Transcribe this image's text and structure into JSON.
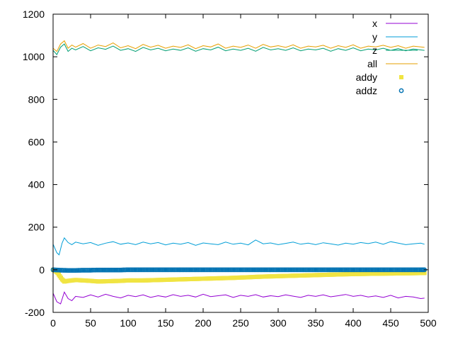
{
  "chart_data": {
    "type": "line",
    "title": "",
    "xlabel": "",
    "ylabel": "",
    "xlim": [
      0,
      500
    ],
    "ylim": [
      -200,
      1200
    ],
    "xticks": [
      0,
      50,
      100,
      150,
      200,
      250,
      300,
      350,
      400,
      450,
      500
    ],
    "yticks": [
      -200,
      0,
      200,
      400,
      600,
      800,
      1000,
      1200
    ],
    "xtick_labels": [
      "0",
      "50",
      "100",
      "150",
      "200",
      "250",
      "300",
      "350",
      "400",
      "450",
      "500"
    ],
    "ytick_labels": [
      "-200",
      "0",
      "200",
      "400",
      "600",
      "800",
      "1000",
      "1200"
    ],
    "grid": false,
    "legend_position": "top-right",
    "series": [
      {
        "name": "x",
        "style": "line",
        "color": "#9400d3",
        "x": [
          0,
          5,
          10,
          15,
          20,
          25,
          30,
          40,
          50,
          60,
          70,
          80,
          90,
          100,
          110,
          120,
          130,
          140,
          150,
          160,
          170,
          180,
          190,
          200,
          210,
          220,
          230,
          240,
          250,
          260,
          270,
          280,
          290,
          300,
          310,
          320,
          330,
          340,
          350,
          360,
          370,
          380,
          390,
          400,
          410,
          420,
          430,
          440,
          450,
          460,
          470,
          480,
          490,
          495
        ],
        "y": [
          -110,
          -150,
          -160,
          -105,
          -135,
          -145,
          -125,
          -130,
          -118,
          -128,
          -115,
          -125,
          -132,
          -120,
          -126,
          -118,
          -130,
          -122,
          -128,
          -117,
          -125,
          -120,
          -128,
          -115,
          -126,
          -122,
          -118,
          -130,
          -120,
          -125,
          -117,
          -128,
          -122,
          -126,
          -118,
          -124,
          -130,
          -120,
          -125,
          -118,
          -127,
          -122,
          -116,
          -125,
          -120,
          -128,
          -123,
          -130,
          -120,
          -132,
          -125,
          -128,
          -135,
          -133
        ]
      },
      {
        "name": "y",
        "style": "line",
        "color": "#009ed7",
        "x": [
          0,
          5,
          8,
          12,
          15,
          20,
          25,
          30,
          40,
          50,
          60,
          70,
          80,
          90,
          100,
          110,
          120,
          130,
          140,
          150,
          160,
          170,
          180,
          190,
          200,
          210,
          220,
          230,
          240,
          250,
          260,
          270,
          280,
          290,
          300,
          310,
          320,
          330,
          340,
          350,
          360,
          370,
          380,
          390,
          400,
          410,
          420,
          430,
          440,
          450,
          460,
          470,
          480,
          490,
          495
        ],
        "y": [
          120,
          80,
          70,
          125,
          150,
          128,
          118,
          130,
          122,
          128,
          115,
          125,
          132,
          120,
          126,
          118,
          130,
          122,
          128,
          117,
          125,
          120,
          128,
          115,
          126,
          122,
          118,
          130,
          120,
          125,
          117,
          140,
          122,
          126,
          118,
          124,
          130,
          120,
          125,
          118,
          127,
          122,
          116,
          125,
          120,
          128,
          123,
          130,
          120,
          132,
          125,
          118,
          122,
          125,
          120
        ]
      },
      {
        "name": "z",
        "style": "line",
        "color": "#009e73",
        "x": [
          0,
          5,
          10,
          15,
          20,
          25,
          30,
          40,
          50,
          60,
          70,
          80,
          90,
          100,
          110,
          120,
          130,
          140,
          150,
          160,
          170,
          180,
          190,
          200,
          210,
          220,
          230,
          240,
          250,
          260,
          270,
          280,
          290,
          300,
          310,
          320,
          330,
          340,
          350,
          360,
          370,
          380,
          390,
          400,
          410,
          420,
          430,
          440,
          450,
          460,
          470,
          480,
          490,
          495
        ],
        "y": [
          1030,
          1010,
          1045,
          1060,
          1025,
          1040,
          1032,
          1048,
          1028,
          1042,
          1035,
          1050,
          1030,
          1038,
          1025,
          1044,
          1032,
          1040,
          1028,
          1036,
          1030,
          1042,
          1026,
          1038,
          1032,
          1045,
          1028,
          1036,
          1030,
          1040,
          1026,
          1044,
          1032,
          1038,
          1030,
          1042,
          1028,
          1036,
          1032,
          1040,
          1026,
          1038,
          1030,
          1042,
          1028,
          1036,
          1032,
          1040,
          1030,
          1038,
          1028,
          1036,
          1032,
          1030
        ]
      },
      {
        "name": "all",
        "style": "line",
        "color": "#e69f00",
        "x": [
          0,
          5,
          10,
          15,
          20,
          25,
          30,
          40,
          50,
          60,
          70,
          80,
          90,
          100,
          110,
          120,
          130,
          140,
          150,
          160,
          170,
          180,
          190,
          200,
          210,
          220,
          230,
          240,
          250,
          260,
          270,
          280,
          290,
          300,
          310,
          320,
          330,
          340,
          350,
          360,
          370,
          380,
          390,
          400,
          410,
          420,
          430,
          440,
          450,
          460,
          470,
          480,
          490,
          495
        ],
        "y": [
          1040,
          1025,
          1060,
          1075,
          1040,
          1055,
          1045,
          1062,
          1040,
          1055,
          1048,
          1065,
          1042,
          1052,
          1038,
          1058,
          1045,
          1054,
          1040,
          1050,
          1044,
          1056,
          1038,
          1052,
          1046,
          1060,
          1040,
          1050,
          1044,
          1055,
          1040,
          1058,
          1046,
          1052,
          1044,
          1056,
          1040,
          1050,
          1046,
          1054,
          1040,
          1052,
          1044,
          1056,
          1040,
          1050,
          1046,
          1054,
          1044,
          1052,
          1040,
          1050,
          1046,
          1044
        ]
      },
      {
        "name": "addy",
        "style": "squares",
        "color": "#f0e442",
        "x": [
          0,
          3,
          6,
          9,
          12,
          15,
          20,
          25,
          30,
          40,
          50,
          60,
          70,
          80,
          90,
          100,
          120,
          140,
          160,
          180,
          200,
          220,
          240,
          260,
          280,
          300,
          320,
          340,
          360,
          380,
          400,
          420,
          440,
          460,
          480,
          495
        ],
        "y": [
          0,
          -5,
          -15,
          -30,
          -45,
          -55,
          -52,
          -50,
          -48,
          -50,
          -52,
          -55,
          -54,
          -53,
          -52,
          -50,
          -50,
          -48,
          -46,
          -44,
          -42,
          -40,
          -38,
          -35,
          -32,
          -30,
          -28,
          -26,
          -24,
          -22,
          -20,
          -19,
          -18,
          -17,
          -16,
          -15
        ]
      },
      {
        "name": "addz",
        "style": "circles",
        "color": "#0072b2",
        "x": [
          0,
          10,
          20,
          30,
          40,
          50,
          60,
          70,
          80,
          90,
          100,
          110,
          120,
          130,
          140,
          150,
          160,
          170,
          180,
          190,
          200,
          210,
          220,
          230,
          240,
          250,
          260,
          270,
          280,
          290,
          300,
          310,
          320,
          330,
          340,
          350,
          360,
          370,
          380,
          390,
          400,
          410,
          420,
          430,
          440,
          450,
          460,
          470,
          480,
          490,
          495
        ],
        "y": [
          0,
          -2,
          -3,
          -3,
          -2,
          -2,
          -1,
          -1,
          -1,
          -1,
          0,
          0,
          0,
          0,
          0,
          0,
          0,
          0,
          0,
          0,
          0,
          0,
          0,
          0,
          0,
          0,
          0,
          0,
          0,
          0,
          0,
          0,
          0,
          0,
          0,
          0,
          0,
          0,
          0,
          0,
          0,
          0,
          0,
          0,
          0,
          0,
          0,
          0,
          0,
          0,
          0
        ]
      }
    ]
  }
}
